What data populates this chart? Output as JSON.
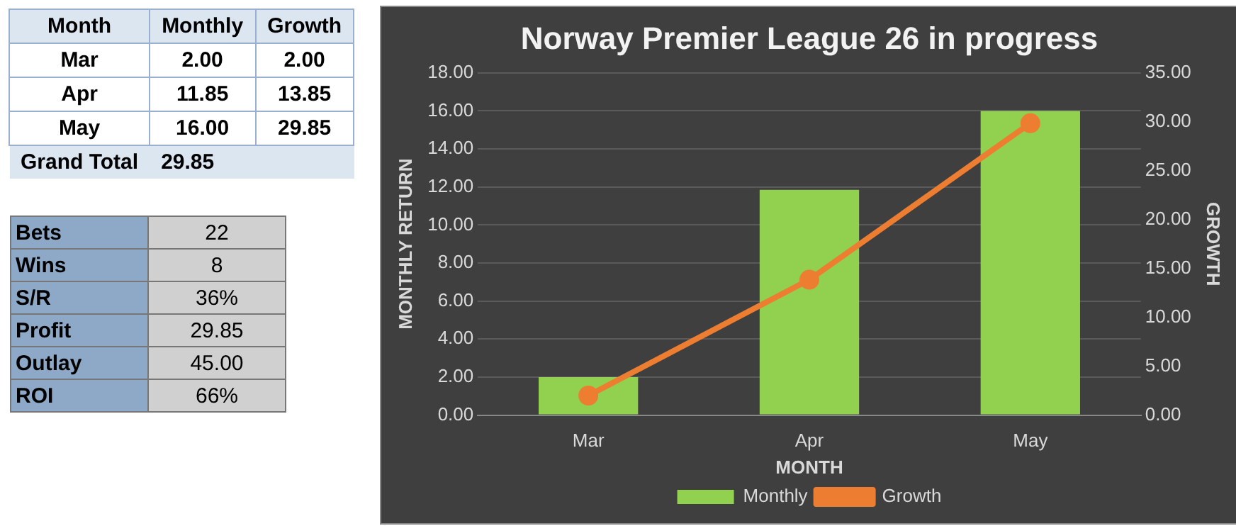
{
  "chart_data": [
    {
      "type": "other",
      "annotations": [
        "Month",
        "Monthly",
        "Growth",
        "Mar",
        "2.00",
        "2.00",
        "Apr",
        "11.85",
        "13.85",
        "May",
        "16.00",
        "29.85",
        "Grand Total",
        "29.85"
      ]
    },
    {
      "type": "other",
      "annotations": [
        "Bets",
        "22",
        "Wins",
        "8",
        "S/R",
        "36%",
        "Profit",
        "29.85",
        "Outlay",
        "45.00",
        "ROI",
        "66%"
      ]
    },
    {
      "type": "bar",
      "title": "Norway Premier League 26 in progress",
      "xlabel": "MONTH",
      "ylabel": "MONTHLY RETURN",
      "y2label": "GROWTH",
      "categories": [
        "Mar",
        "Apr",
        "May"
      ],
      "series": [
        {
          "name": "Monthly",
          "type": "bar",
          "color": "#92d050",
          "values": [
            2.0,
            11.85,
            16.0
          ]
        },
        {
          "name": "Growth",
          "type": "line",
          "axis": "y2",
          "color": "#ed7d31",
          "marker": "circle",
          "line_style": "solid",
          "values": [
            2.0,
            13.85,
            29.85
          ]
        }
      ],
      "ylim": [
        0,
        18
      ],
      "yticks": [
        {
          "value": 0,
          "label": "0.00"
        },
        {
          "value": 2,
          "label": "2.00"
        },
        {
          "value": 4,
          "label": "4.00"
        },
        {
          "value": 6,
          "label": "6.00"
        },
        {
          "value": 8,
          "label": "8.00"
        },
        {
          "value": 10,
          "label": "10.00"
        },
        {
          "value": 12,
          "label": "12.00"
        },
        {
          "value": 14,
          "label": "14.00"
        },
        {
          "value": 16,
          "label": "16.00"
        },
        {
          "value": 18,
          "label": "18.00"
        }
      ],
      "y2lim": [
        0,
        35
      ],
      "y2ticks": [
        {
          "value": 0,
          "label": "0.00"
        },
        {
          "value": 5,
          "label": "5.00"
        },
        {
          "value": 10,
          "label": "10.00"
        },
        {
          "value": 15,
          "label": "15.00"
        },
        {
          "value": 20,
          "label": "20.00"
        },
        {
          "value": 25,
          "label": "25.00"
        },
        {
          "value": 30,
          "label": "30.00"
        },
        {
          "value": 35,
          "label": "35.00"
        }
      ],
      "grid": "y",
      "legend": "bottom"
    }
  ]
}
